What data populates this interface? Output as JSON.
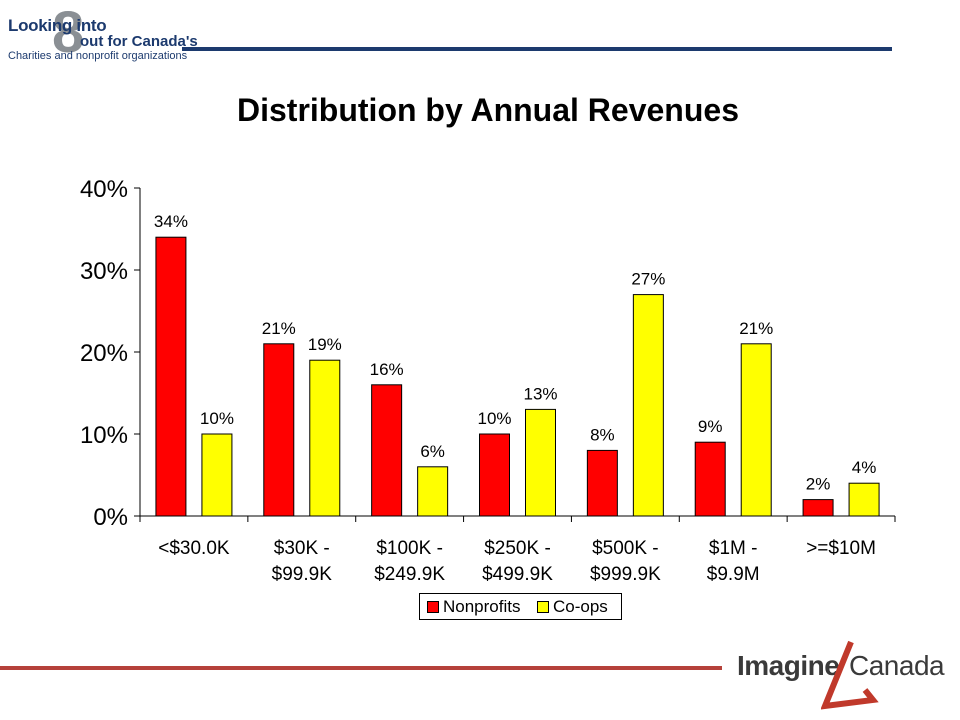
{
  "header_logo": {
    "line1": "Looking into",
    "digit": "8",
    "line2": "out for Canada's",
    "line3": "Charities and nonprofit organizations"
  },
  "footer_logo": {
    "word1": "Imagine",
    "word2": "Canada"
  },
  "colors": {
    "nonprofits": "#ff0000",
    "coops": "#ffff00",
    "header_rule": "#1c3a6e",
    "footer_rule": "#b5413a",
    "logo_accent": "#c0392b"
  },
  "chart_data": {
    "type": "bar",
    "title": "Distribution by Annual Revenues",
    "categories": [
      [
        "<$30.0K"
      ],
      [
        "$30K -",
        "$99.9K"
      ],
      [
        "$100K -",
        "$249.9K"
      ],
      [
        "$250K -",
        "$499.9K"
      ],
      [
        "$500K -",
        "$999.9K"
      ],
      [
        "$1M -",
        "$9.9M"
      ],
      [
        ">=$10M"
      ]
    ],
    "series": [
      {
        "name": "Nonprofits",
        "values": [
          34,
          21,
          16,
          10,
          8,
          9,
          2
        ]
      },
      {
        "name": "Co-ops",
        "values": [
          10,
          19,
          6,
          13,
          27,
          21,
          4
        ]
      }
    ],
    "data_labels": [
      [
        "34%",
        "21%",
        "16%",
        "10%",
        "8%",
        "9%",
        "2%"
      ],
      [
        "10%",
        "19%",
        "6%",
        "13%",
        "27%",
        "21%",
        "4%"
      ]
    ],
    "ylim": [
      0,
      40
    ],
    "yticks": [
      0,
      10,
      20,
      30,
      40
    ],
    "ytick_labels": [
      "0%",
      "10%",
      "20%",
      "30%",
      "40%"
    ],
    "xlabel": "",
    "ylabel": "",
    "grid": false,
    "legend": "bottom-center"
  }
}
